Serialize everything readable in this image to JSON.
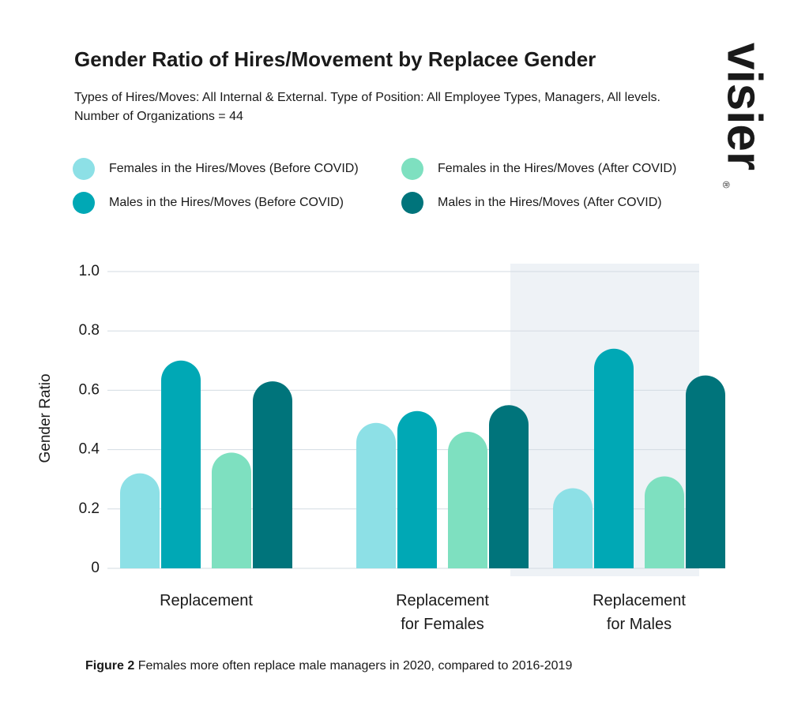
{
  "chart_data": {
    "type": "bar",
    "title": "Gender Ratio of Hires/Movement by Replacee Gender",
    "subtitle": "Types of Hires/Moves: All Internal & External. Type of Position: All Employee Types, Managers, All levels. Number of Organizations = 44",
    "y_label": "Gender Ratio",
    "categories": [
      "Replacement",
      "Replacement\nfor Females",
      "Replacement\nfor Males"
    ],
    "series": [
      {
        "name": "Females in the Hires/Moves (Before COVID)",
        "color": "#8de0e6",
        "values": [
          0.32,
          0.49,
          0.27
        ]
      },
      {
        "name": "Males in the Hires/Moves (Before COVID)",
        "color": "#00a8b5",
        "values": [
          0.7,
          0.53,
          0.74
        ]
      },
      {
        "name": "Females in the Hires/Moves (After COVID)",
        "color": "#7ee0c0",
        "values": [
          0.39,
          0.46,
          0.31
        ]
      },
      {
        "name": "Males in the Hires/Moves (After COVID)",
        "color": "#00747b",
        "values": [
          0.63,
          0.55,
          0.65
        ]
      }
    ],
    "ylim": [
      0,
      1
    ],
    "yticks": [
      0,
      0.2,
      0.4,
      0.6,
      0.8,
      {
        "value": 1,
        "label": "1.0"
      }
    ],
    "grid": true,
    "highlight_category": 2,
    "caption_label": "Figure 2",
    "caption": "Females more often replace male managers in 2020, compared to 2016-2019",
    "logo": "visier",
    "logo_mark": "®"
  }
}
